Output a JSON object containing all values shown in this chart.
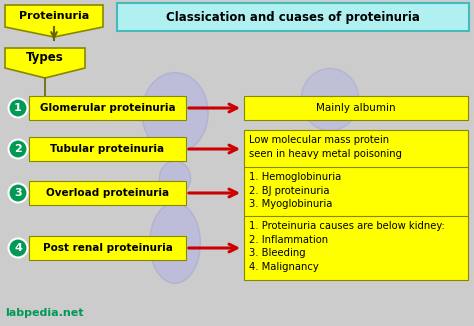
{
  "title": "Classication and cuases of proteinuria",
  "title_box_color": "#b0f0f0",
  "bg_color": "#cccccc",
  "yellow": "#ffff00",
  "green_circle": "#009955",
  "red_arrow": "#cc0000",
  "watermark": "labpedia.net",
  "proteinuria_label": "Proteinuria",
  "types_label": "Types",
  "rows": [
    {
      "num": "1",
      "left": "Glomerular proteinuria",
      "right": "Mainly albumin"
    },
    {
      "num": "2",
      "left": "Tubular proteinuria",
      "right": "Low molecular mass protein\nseen in heavy metal poisoning"
    },
    {
      "num": "3",
      "left": "Overload proteinuria",
      "right": "1. Hemoglobinuria\n2. BJ proteinuria\n3. Myoglobinuria"
    },
    {
      "num": "4",
      "left": "Post renal proteinuria",
      "right": "1. Proteinuria causes are below kidney:\n2. Inflammation\n3. Bleeding\n4. Malignancy"
    }
  ]
}
